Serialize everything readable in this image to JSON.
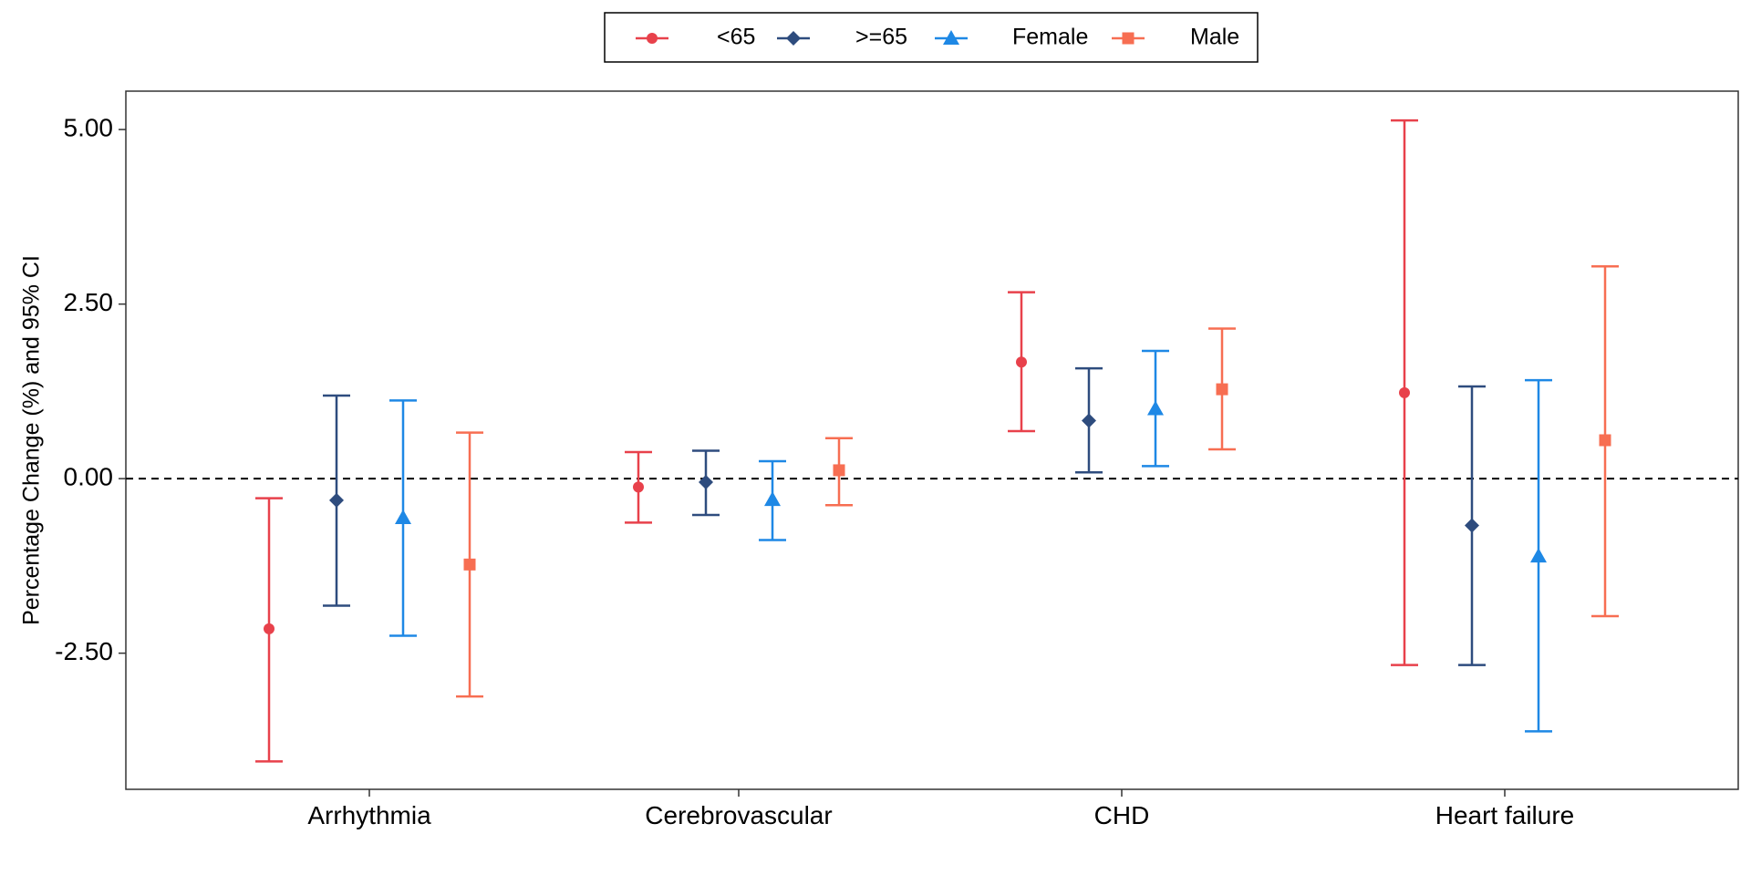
{
  "chart_data": {
    "type": "errorbar",
    "title": "",
    "xlabel": "",
    "ylabel": "Percentage Change (%) and 95% CI",
    "ylim": [
      -4.45,
      5.55
    ],
    "yticks": [
      5.0,
      2.5,
      0.0,
      -2.5
    ],
    "ytick_labels": [
      "5.00",
      "2.50",
      "0.00",
      "-2.50"
    ],
    "reference_line": {
      "y": 0,
      "style": "dashed"
    },
    "categories": [
      "Arrhythmia",
      "Cerebrovascular",
      "CHD",
      "Heart failure"
    ],
    "legend": {
      "position": "top",
      "boxed": true
    },
    "grid": false,
    "series": [
      {
        "name": "<65",
        "color": "#E8414B",
        "marker": "circle",
        "points": [
          {
            "category": "Arrhythmia",
            "estimate": -2.15,
            "lower": -4.05,
            "upper": -0.28
          },
          {
            "category": "Cerebrovascular",
            "estimate": -0.12,
            "lower": -0.63,
            "upper": 0.38
          },
          {
            "category": "CHD",
            "estimate": 1.67,
            "lower": 0.68,
            "upper": 2.67
          },
          {
            "category": "Heart failure",
            "estimate": 1.23,
            "lower": -2.67,
            "upper": 5.13
          }
        ]
      },
      {
        "name": ">=65",
        "color": "#2E4C7E",
        "marker": "diamond",
        "points": [
          {
            "category": "Arrhythmia",
            "estimate": -0.31,
            "lower": -1.82,
            "upper": 1.19
          },
          {
            "category": "Cerebrovascular",
            "estimate": -0.05,
            "lower": -0.52,
            "upper": 0.4
          },
          {
            "category": "CHD",
            "estimate": 0.83,
            "lower": 0.09,
            "upper": 1.58
          },
          {
            "category": "Heart failure",
            "estimate": -0.67,
            "lower": -2.67,
            "upper": 1.32
          }
        ]
      },
      {
        "name": "Female",
        "color": "#1E88E5",
        "marker": "triangle",
        "points": [
          {
            "category": "Arrhythmia",
            "estimate": -0.56,
            "lower": -2.25,
            "upper": 1.12
          },
          {
            "category": "Cerebrovascular",
            "estimate": -0.3,
            "lower": -0.88,
            "upper": 0.25
          },
          {
            "category": "CHD",
            "estimate": 1.0,
            "lower": 0.18,
            "upper": 1.83
          },
          {
            "category": "Heart failure",
            "estimate": -1.11,
            "lower": -3.62,
            "upper": 1.41
          }
        ]
      },
      {
        "name": "Male",
        "color": "#F76E52",
        "marker": "square",
        "points": [
          {
            "category": "Arrhythmia",
            "estimate": -1.23,
            "lower": -3.12,
            "upper": 0.66
          },
          {
            "category": "Cerebrovascular",
            "estimate": 0.12,
            "lower": -0.38,
            "upper": 0.58
          },
          {
            "category": "CHD",
            "estimate": 1.28,
            "lower": 0.42,
            "upper": 2.15
          },
          {
            "category": "Heart failure",
            "estimate": 0.55,
            "lower": -1.97,
            "upper": 3.04
          }
        ]
      }
    ]
  }
}
